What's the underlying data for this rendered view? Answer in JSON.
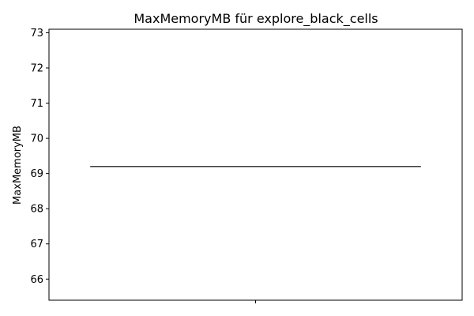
{
  "chart_data": {
    "type": "box",
    "title": "MaxMemoryMB für explore_black_cells",
    "xlabel": "",
    "ylabel": "MaxMemoryMB",
    "ylim": [
      65.4,
      73.1
    ],
    "yticks": [
      66,
      67,
      68,
      69,
      70,
      71,
      72,
      73
    ],
    "categories": [
      ""
    ],
    "boxes": [
      {
        "category": "",
        "min": 69.2,
        "q1": 69.2,
        "median": 69.2,
        "q3": 69.2,
        "max": 69.2
      }
    ],
    "grid": false,
    "colors": {
      "box_edge": "#3f3f3f",
      "axis": "#000000"
    }
  }
}
